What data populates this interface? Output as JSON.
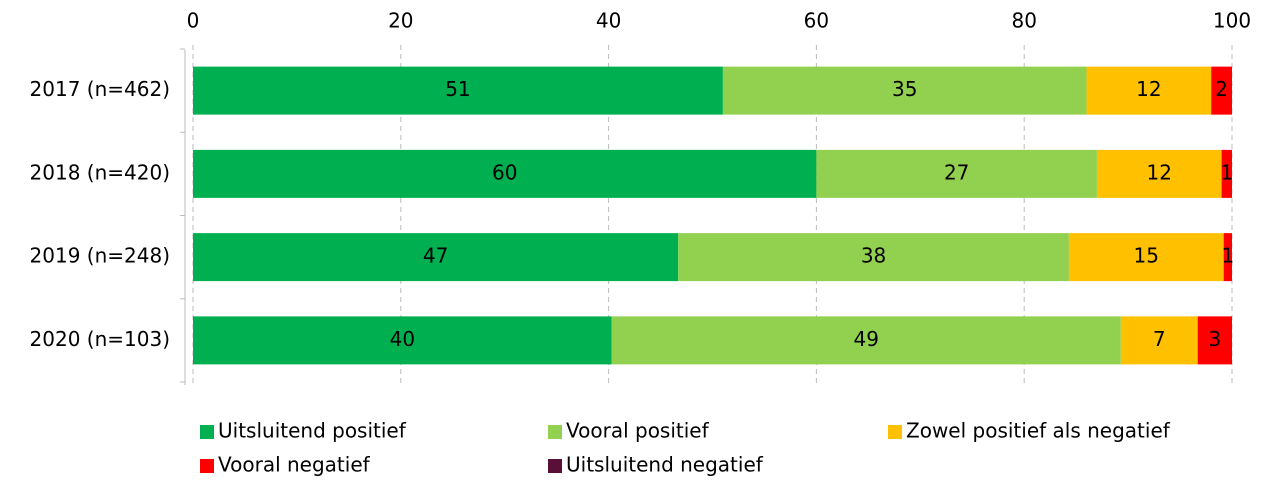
{
  "chart_data": {
    "type": "stacked-bar-horizontal",
    "categories": [
      "2017 (n=462)",
      "2018 (n=420)",
      "2019 (n=248)",
      "2020 (n=103)"
    ],
    "series": [
      {
        "name": "Uitsluitend positief",
        "color": "#00b050",
        "values": [
          51,
          60,
          46.7,
          40.3
        ],
        "value_labels": [
          "51",
          "60",
          "47",
          "40"
        ]
      },
      {
        "name": "Vooral positief",
        "color": "#92d050",
        "values": [
          35,
          27,
          37.6,
          49
        ],
        "value_labels": [
          "35",
          "27",
          "38",
          "49"
        ]
      },
      {
        "name": "Zowel positief als negatief",
        "color": "#ffc000",
        "values": [
          12,
          12,
          14.9,
          7.4
        ],
        "value_labels": [
          "12",
          "12",
          "15",
          "7"
        ]
      },
      {
        "name": "Vooral negatief",
        "color": "#ff0000",
        "values": [
          2,
          1,
          0.8,
          3.3
        ],
        "value_labels": [
          "2",
          "1",
          "1",
          "3"
        ]
      },
      {
        "name": "Uitsluitend negatief",
        "color": "#5a0f37",
        "values": [
          0,
          0,
          0,
          0
        ]
      }
    ],
    "xlim": [
      0,
      100
    ],
    "xticks": [
      0,
      20,
      40,
      60,
      80,
      100
    ],
    "grid": true
  }
}
